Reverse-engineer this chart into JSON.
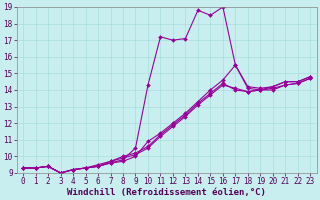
{
  "title": "",
  "xlabel": "Windchill (Refroidissement éolien,°C)",
  "ylabel": "",
  "bg_color": "#c8eef0",
  "line_color": "#990099",
  "grid_color": "#aadddd",
  "xlim": [
    -0.5,
    23.5
  ],
  "ylim": [
    9,
    19
  ],
  "xticks": [
    0,
    1,
    2,
    3,
    4,
    5,
    6,
    7,
    8,
    9,
    10,
    11,
    12,
    13,
    14,
    15,
    16,
    17,
    18,
    19,
    20,
    21,
    22,
    23
  ],
  "yticks": [
    9,
    10,
    11,
    12,
    13,
    14,
    15,
    16,
    17,
    18,
    19
  ],
  "lines": [
    {
      "x": [
        0,
        1,
        2,
        3,
        4,
        5,
        6,
        7,
        8,
        9,
        10,
        11,
        12,
        13,
        14,
        15,
        16,
        17,
        18,
        19,
        20,
        21,
        22,
        23
      ],
      "y": [
        9.3,
        9.3,
        9.4,
        9.0,
        9.2,
        9.3,
        9.4,
        9.6,
        9.7,
        10.0,
        10.9,
        11.4,
        12.0,
        12.6,
        13.3,
        14.0,
        14.6,
        15.5,
        14.2,
        14.1,
        14.2,
        14.5,
        14.5,
        14.8
      ]
    },
    {
      "x": [
        0,
        1,
        2,
        3,
        4,
        5,
        6,
        7,
        8,
        9,
        10,
        11,
        12,
        13,
        14,
        15,
        16,
        17,
        18,
        19,
        20,
        21,
        22,
        23
      ],
      "y": [
        9.3,
        9.3,
        9.4,
        9.0,
        9.2,
        9.3,
        9.4,
        9.7,
        9.9,
        10.1,
        10.5,
        11.2,
        11.8,
        12.4,
        13.1,
        13.7,
        14.3,
        14.1,
        13.9,
        14.0,
        14.0,
        14.3,
        14.4,
        14.7
      ]
    },
    {
      "x": [
        0,
        1,
        2,
        3,
        4,
        5,
        6,
        7,
        8,
        9,
        10,
        11,
        12,
        13,
        14,
        15,
        16,
        17,
        18,
        19,
        20,
        21,
        22,
        23
      ],
      "y": [
        9.3,
        9.3,
        9.4,
        9.0,
        9.2,
        9.3,
        9.5,
        9.7,
        10.0,
        10.2,
        10.6,
        11.3,
        11.9,
        12.5,
        13.2,
        13.8,
        14.4,
        14.0,
        13.9,
        14.0,
        14.1,
        14.3,
        14.4,
        14.7
      ]
    },
    {
      "x": [
        0,
        1,
        2,
        3,
        4,
        5,
        6,
        7,
        8,
        9,
        10,
        11,
        12,
        13,
        14,
        15,
        16,
        17,
        18,
        19,
        20,
        21,
        22,
        23
      ],
      "y": [
        9.3,
        9.3,
        9.4,
        9.0,
        9.2,
        9.3,
        9.4,
        9.6,
        9.8,
        10.5,
        14.3,
        17.2,
        17.0,
        17.1,
        18.8,
        18.5,
        19.0,
        15.5,
        14.1,
        14.0,
        14.2,
        14.5,
        14.5,
        14.8
      ]
    }
  ],
  "marker": "D",
  "marker_size": 2.0,
  "linewidth": 0.8,
  "tick_fontsize": 5.5,
  "xlabel_fontsize": 6.5
}
